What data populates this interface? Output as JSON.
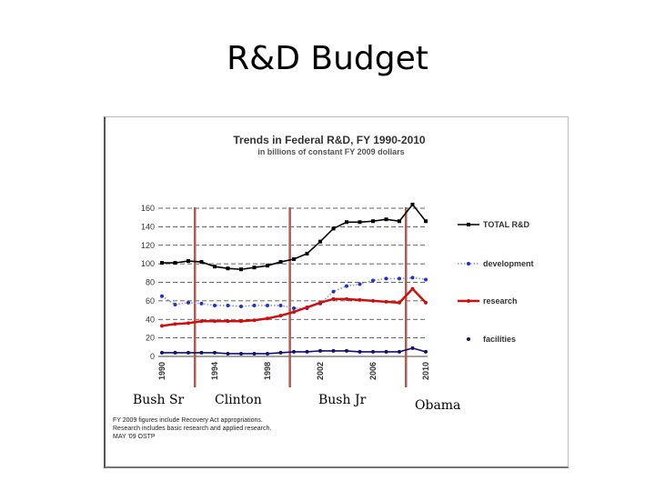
{
  "slide": {
    "title": "R&D Budget"
  },
  "eras": [
    "Bush Sr",
    "Clinton",
    "Bush Jr",
    "Obama"
  ],
  "notes": [
    "FY 2009 figures include Recovery Act appropriations.",
    "Research includes basic research and applied research.",
    "MAY '09 OSTP"
  ],
  "chart_data": {
    "type": "line",
    "title": "Trends in Federal R&D, FY 1990-2010",
    "subtitle": "in billions of constant FY 2009 dollars",
    "x": [
      1990,
      1991,
      1992,
      1993,
      1994,
      1995,
      1996,
      1997,
      1998,
      1999,
      2000,
      2001,
      2002,
      2003,
      2004,
      2005,
      2006,
      2007,
      2008,
      2009,
      2010
    ],
    "x_ticks": [
      "1990",
      "1994",
      "1998",
      "2002",
      "2006",
      "2010"
    ],
    "y_ticks": [
      "0",
      "20",
      "40",
      "60",
      "80",
      "100",
      "120",
      "140",
      "160"
    ],
    "ylim": [
      0,
      170
    ],
    "grid": "horizontal dashed",
    "legend_position": "right",
    "series": [
      {
        "name": "TOTAL R&D",
        "color": "#000000",
        "marker": "square",
        "values": [
          101,
          101,
          103,
          102,
          97,
          95,
          94,
          96,
          98,
          102,
          105,
          111,
          124,
          138,
          145,
          145,
          146,
          148,
          146,
          164,
          146
        ]
      },
      {
        "name": "development",
        "color": "#2233bb",
        "marker": "dot",
        "dashed": true,
        "values": [
          65,
          56,
          58,
          57,
          55,
          55,
          54,
          55,
          55,
          55,
          52,
          52,
          57,
          70,
          76,
          78,
          82,
          84,
          84,
          85,
          83
        ]
      },
      {
        "name": "research",
        "color": "#cc1111",
        "marker": "dot",
        "values": [
          33,
          35,
          36,
          38,
          38,
          38,
          38,
          39,
          41,
          44,
          48,
          53,
          58,
          62,
          62,
          61,
          60,
          59,
          58,
          73,
          58
        ]
      },
      {
        "name": "facilities",
        "color": "#111177",
        "marker": "dot",
        "values": [
          4,
          4,
          4,
          4,
          4,
          3,
          3,
          3,
          3,
          4,
          5,
          5,
          6,
          6,
          6,
          5,
          5,
          5,
          5,
          9,
          5
        ]
      }
    ]
  }
}
